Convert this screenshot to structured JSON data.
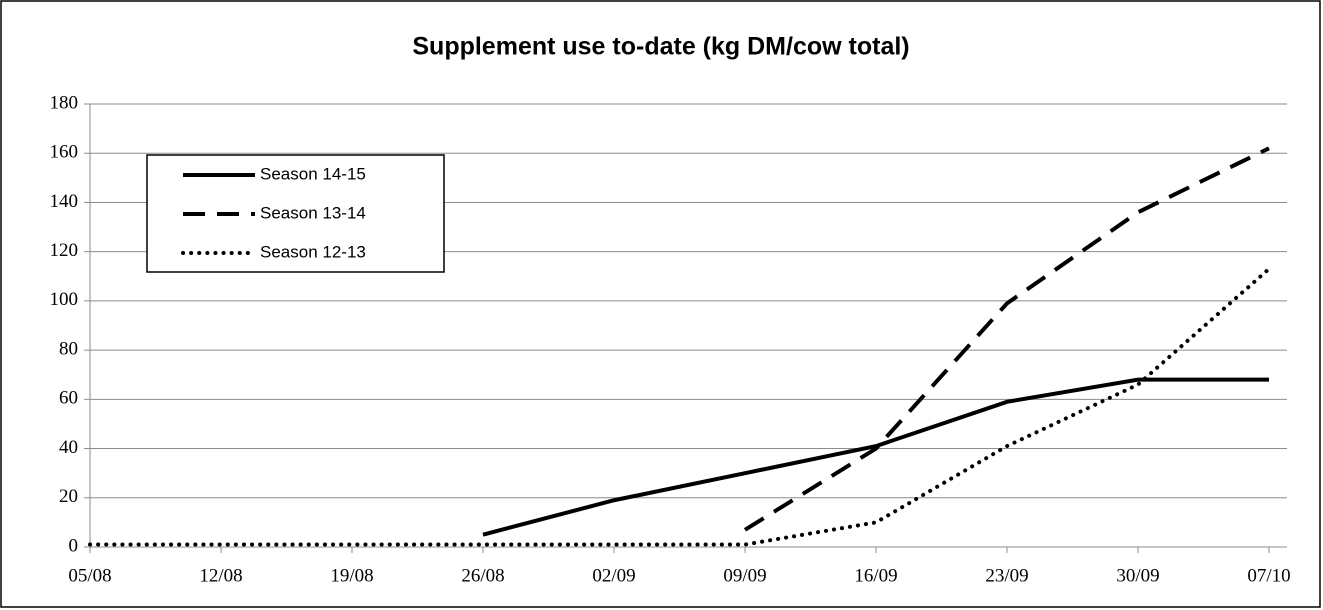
{
  "chart_data": {
    "type": "line",
    "title": "Supplement use to-date (kg DM/cow total)",
    "categories": [
      "05/08",
      "12/08",
      "19/08",
      "26/08",
      "02/09",
      "09/09",
      "16/09",
      "23/09",
      "30/09",
      "07/10"
    ],
    "series": [
      {
        "name": "Season 14-15",
        "color": "#000000",
        "style": "solid",
        "values": [
          null,
          null,
          null,
          5,
          19,
          30,
          41,
          59,
          68,
          68
        ]
      },
      {
        "name": "Season 13-14",
        "color": "#000000",
        "style": "dashed",
        "values": [
          null,
          null,
          null,
          null,
          null,
          7,
          40,
          99,
          136,
          162
        ]
      },
      {
        "name": "Season 12-13",
        "color": "#000000",
        "style": "dotted",
        "values": [
          1,
          1,
          1,
          1,
          1,
          1,
          10,
          41,
          66,
          113
        ]
      }
    ],
    "ylim": [
      0,
      180
    ],
    "yticks": [
      0,
      20,
      40,
      60,
      80,
      100,
      120,
      140,
      160,
      180
    ],
    "grid": true,
    "legend": "upper left"
  }
}
